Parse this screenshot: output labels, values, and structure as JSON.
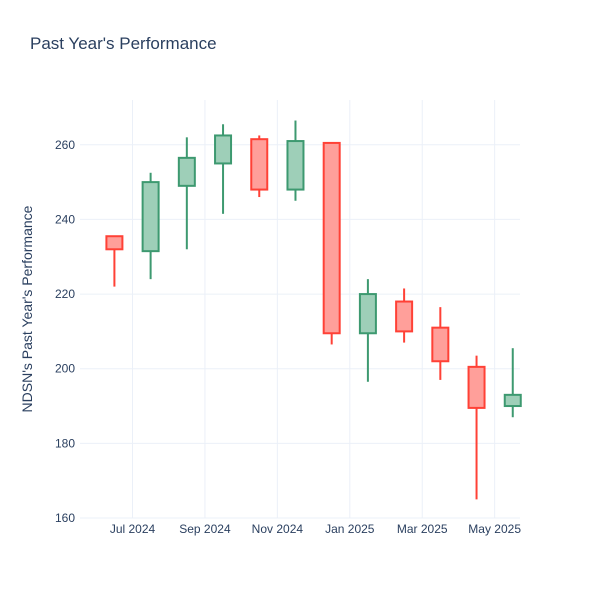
{
  "chart_data": {
    "type": "candlestick",
    "title": "Past Year's Performance",
    "xlabel": "",
    "ylabel": "NDSN's Past Year's Performance",
    "ylim": [
      160,
      272
    ],
    "y_ticks": [
      160,
      180,
      200,
      220,
      240,
      260
    ],
    "x_tick_labels": [
      "Jul 2024",
      "Sep 2024",
      "Nov 2024",
      "Jan 2025",
      "Mar 2025",
      "May 2025"
    ],
    "grid": true,
    "legend": "none",
    "colors": {
      "increasing_line": "#3d9970",
      "increasing_fill": "#9ecfb8",
      "decreasing_line": "#ff4136",
      "decreasing_fill": "#ff9f9a",
      "grid": "#ebf0f8",
      "text": "#2a3f5f"
    },
    "candles": [
      {
        "date": "2024-06",
        "open": 235.5,
        "high": 235.5,
        "low": 222.0,
        "close": 232.0
      },
      {
        "date": "2024-07",
        "open": 231.5,
        "high": 252.5,
        "low": 224.0,
        "close": 250.0
      },
      {
        "date": "2024-08",
        "open": 249.0,
        "high": 262.0,
        "low": 232.0,
        "close": 256.5
      },
      {
        "date": "2024-09",
        "open": 255.0,
        "high": 265.5,
        "low": 241.5,
        "close": 262.5
      },
      {
        "date": "2024-10",
        "open": 261.5,
        "high": 262.5,
        "low": 246.0,
        "close": 248.0
      },
      {
        "date": "2024-11",
        "open": 248.0,
        "high": 266.5,
        "low": 245.0,
        "close": 261.0
      },
      {
        "date": "2024-12",
        "open": 260.5,
        "high": 260.5,
        "low": 206.5,
        "close": 209.5
      },
      {
        "date": "2025-01",
        "open": 209.5,
        "high": 224.0,
        "low": 196.5,
        "close": 220.0
      },
      {
        "date": "2025-02",
        "open": 218.0,
        "high": 221.5,
        "low": 207.0,
        "close": 210.0
      },
      {
        "date": "2025-03",
        "open": 211.0,
        "high": 216.5,
        "low": 197.0,
        "close": 202.0
      },
      {
        "date": "2025-04",
        "open": 200.5,
        "high": 203.5,
        "low": 165.0,
        "close": 189.5
      },
      {
        "date": "2025-05",
        "open": 190.0,
        "high": 205.5,
        "low": 187.0,
        "close": 193.0
      }
    ]
  }
}
